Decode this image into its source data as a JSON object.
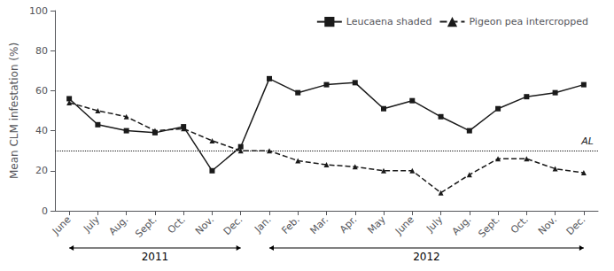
{
  "chart_data": {
    "type": "line",
    "categories": [
      "June",
      "July",
      "Aug.",
      "Sept.",
      "Oct.",
      "Nov.",
      "Dec.",
      "Jan.",
      "Feb.",
      "Mar.",
      "Apr.",
      "May",
      "June",
      "July",
      "Aug.",
      "Sept.",
      "Oct.",
      "Nov.",
      "Dec."
    ],
    "series": [
      {
        "name": "Leucaena shaded",
        "color": "#1a1a1a",
        "line_style": "solid",
        "marker": "square",
        "values": [
          56,
          43,
          40,
          39,
          42,
          20,
          32,
          66,
          59,
          63,
          64,
          51,
          55,
          47,
          40,
          51,
          57,
          59,
          63
        ]
      },
      {
        "name": "Pigeon pea intercropped",
        "color": "#1a1a1a",
        "line_style": "dashed",
        "marker": "triangle",
        "values": [
          54,
          50,
          47,
          40,
          41,
          35,
          30,
          30,
          25,
          23,
          22,
          20,
          20,
          9,
          18,
          26,
          26,
          21,
          19
        ]
      }
    ],
    "ylabel": "Mean CLM infestation (%)",
    "ylim": [
      0,
      100
    ],
    "yticks": [
      0,
      20,
      40,
      60,
      80,
      100
    ],
    "grid": false,
    "legend": "upper right",
    "annotations": [
      {
        "text": "AL",
        "y": 30,
        "color": "#1a1a1a",
        "line_style": "dotted"
      },
      {
        "text": "2011",
        "start": 0,
        "end": 6
      },
      {
        "text": "2012",
        "start": 7,
        "end": 18
      }
    ]
  }
}
